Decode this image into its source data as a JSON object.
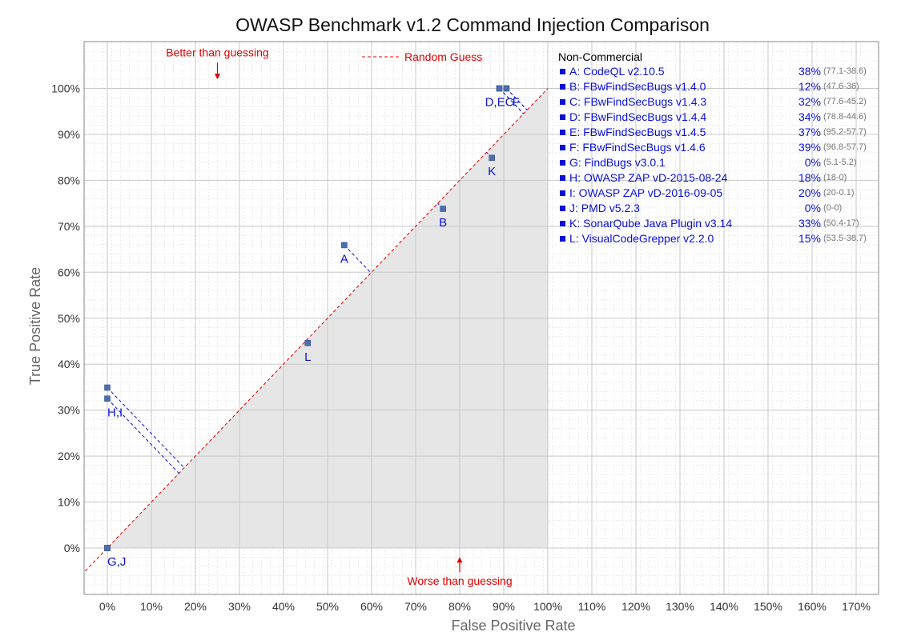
{
  "chart_data": {
    "type": "scatter",
    "title": "OWASP Benchmark v1.2 Command Injection Comparison",
    "xlabel": "False Positive Rate",
    "ylabel": "True Positive Rate",
    "xlim": [
      -5,
      172
    ],
    "ylim": [
      -10,
      110
    ],
    "x_ticks": [
      0,
      10,
      20,
      30,
      40,
      50,
      60,
      70,
      80,
      90,
      100,
      110,
      120,
      130,
      140,
      150,
      160,
      170
    ],
    "x_tick_labels": [
      "0%",
      "10%",
      "20%",
      "30%",
      "40%",
      "50%",
      "60%",
      "70%",
      "80%",
      "90%",
      "100%",
      "110%",
      "120%",
      "130%",
      "140%",
      "150%",
      "160%",
      "170%"
    ],
    "y_ticks": [
      0,
      10,
      20,
      30,
      40,
      50,
      60,
      70,
      80,
      90,
      100
    ],
    "y_tick_labels": [
      "0%",
      "10%",
      "20%",
      "30%",
      "40%",
      "50%",
      "60%",
      "70%",
      "80%",
      "90%",
      "100%"
    ],
    "grid": true,
    "shaded_region": "below random guess line, x 0-100%",
    "random_guess_label": "Random Guess",
    "annotations": [
      {
        "text": "Better than guessing",
        "x": 25,
        "y": 107,
        "arrow": "down",
        "color": "#e00000"
      },
      {
        "text": "Worse than guessing",
        "x": 80,
        "y": -7,
        "arrow": "up",
        "color": "#e00000"
      }
    ],
    "points": [
      {
        "id": "A",
        "x": 53.8,
        "y": 65.9
      },
      {
        "id": "B",
        "x": 76.2,
        "y": 73.8
      },
      {
        "id": "C",
        "x": 90.6,
        "y": 100
      },
      {
        "id": "D",
        "x": 89.0,
        "y": 100
      },
      {
        "id": "E",
        "x": 89.0,
        "y": 100
      },
      {
        "id": "F",
        "x": 90.6,
        "y": 100
      },
      {
        "id": "G",
        "x": 0,
        "y": 0
      },
      {
        "id": "H",
        "x": 0,
        "y": 32.5
      },
      {
        "id": "I",
        "x": 0,
        "y": 34.9
      },
      {
        "id": "J",
        "x": 0,
        "y": 0
      },
      {
        "id": "K",
        "x": 87.3,
        "y": 84.9
      },
      {
        "id": "L",
        "x": 45.5,
        "y": 44.6
      }
    ],
    "point_labels": [
      {
        "text": "A",
        "x": 53.8,
        "y": 65.9
      },
      {
        "text": "B",
        "x": 76.2,
        "y": 73.8
      },
      {
        "text": "D,EC",
        "x": 89.0,
        "y": 100
      },
      {
        "text": "F",
        "x": 90.6,
        "y": 100
      },
      {
        "text": "G,J",
        "x": 0,
        "y": 0
      },
      {
        "text": "H,I",
        "x": 0,
        "y": 32.5
      },
      {
        "text": "K",
        "x": 87.3,
        "y": 84.9
      },
      {
        "text": "L",
        "x": 45.5,
        "y": 44.6
      }
    ],
    "legend_header": "Non-Commercial",
    "legend": [
      {
        "label": "A: CodeQL v2.10.5",
        "score": "38%",
        "range": "(77.1-38.6)"
      },
      {
        "label": "B: FBwFindSecBugs v1.4.0",
        "score": "12%",
        "range": "(47.6-36)"
      },
      {
        "label": "C: FBwFindSecBugs v1.4.3",
        "score": "32%",
        "range": "(77.6-45.2)"
      },
      {
        "label": "D: FBwFindSecBugs v1.4.4",
        "score": "34%",
        "range": "(78.8-44.6)"
      },
      {
        "label": "E: FBwFindSecBugs v1.4.5",
        "score": "37%",
        "range": "(95.2-57.7)"
      },
      {
        "label": "F: FBwFindSecBugs v1.4.6",
        "score": "39%",
        "range": "(96.8-57.7)"
      },
      {
        "label": "G: FindBugs v3.0.1",
        "score": "0%",
        "range": "(5.1-5.2)"
      },
      {
        "label": "H: OWASP ZAP vD-2015-08-24",
        "score": "18%",
        "range": "(18-0)"
      },
      {
        "label": "I:   OWASP ZAP vD-2016-09-05",
        "score": "20%",
        "range": "(20-0.1)"
      },
      {
        "label": "J:  PMD v5.2.3",
        "score": "0%",
        "range": "(0-0)"
      },
      {
        "label": "K: SonarQube Java Plugin v3.14",
        "score": "33%",
        "range": "(50.4-17)"
      },
      {
        "label": "L: VisualCodeGrepper v2.2.0",
        "score": "15%",
        "range": "(53.5-38.7)"
      }
    ],
    "colors": {
      "point": "#4d6fae",
      "label": "#0a10d8",
      "guess_line": "#e00000",
      "annotation": "#e00000",
      "shade": "#e6e6e6"
    }
  }
}
